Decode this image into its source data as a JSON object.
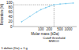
{
  "chart_data": {
    "type": "line",
    "x": [
      20,
      40,
      70,
      100,
      150,
      200,
      300,
      500,
      800,
      1500
    ],
    "values": [
      20,
      42,
      60,
      70,
      78,
      83,
      90,
      93,
      95,
      97
    ],
    "color": "#7FCCEE",
    "marker": "diamond",
    "line_style": "solid",
    "log": "x",
    "xlim": [
      10,
      2000
    ],
    "ylim": [
      0,
      100
    ],
    "xticks": [
      100,
      200,
      500,
      1000
    ],
    "yticks": [
      0,
      20,
      40,
      60,
      80,
      100
    ],
    "xlabel": "Molar mass (kDa)",
    "ylabel": "Retention (%)",
    "cutoff_x": 300,
    "cutoff_y": 90,
    "cutoff_label": "Cutoff threshold\nMWCO",
    "footnote": "1 dalton (Da) = 1 g",
    "grid": false
  }
}
